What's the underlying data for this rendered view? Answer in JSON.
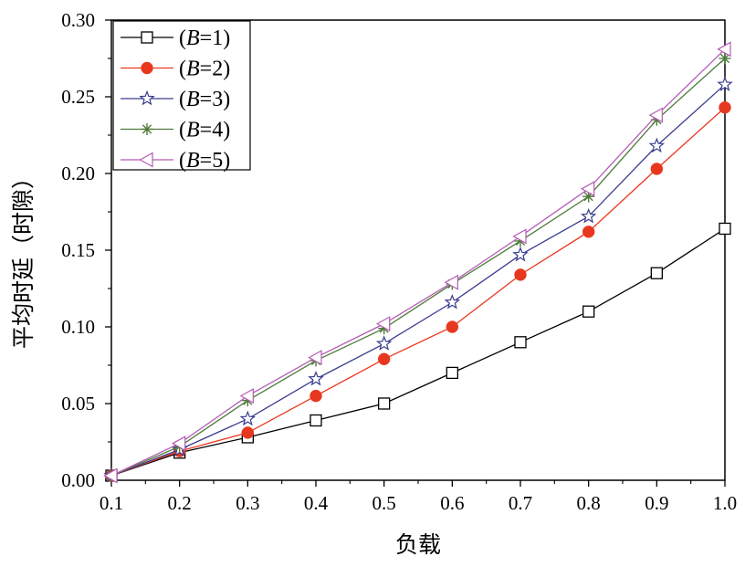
{
  "chart_data": {
    "type": "line",
    "xlabel": "负载",
    "ylabel": "平均时延（时隙）",
    "x": [
      0.1,
      0.2,
      0.3,
      0.4,
      0.5,
      0.6,
      0.7,
      0.8,
      0.9,
      1.0
    ],
    "x_tick_labels": [
      "0.1",
      "0.2",
      "0.3",
      "0.4",
      "0.5",
      "0.6",
      "0.7",
      "0.8",
      "0.9",
      "1.0"
    ],
    "y_tick_labels": [
      "0.00",
      "0.05",
      "0.10",
      "0.15",
      "0.20",
      "0.25",
      "0.30"
    ],
    "y_ticks": [
      0,
      0.05,
      0.1,
      0.15,
      0.2,
      0.25,
      0.3
    ],
    "xlim": [
      0.1,
      1.0
    ],
    "ylim": [
      0,
      0.3
    ],
    "grid": false,
    "legend_position": "top-left",
    "series": [
      {
        "name": "(B=1)",
        "name_prefix": "(",
        "name_var": "B",
        "name_suffix": "=1)",
        "color": "#000000",
        "marker": "square-open",
        "values": [
          0.003,
          0.018,
          0.028,
          0.039,
          0.05,
          0.07,
          0.09,
          0.11,
          0.135,
          0.164
        ]
      },
      {
        "name": "(B=2)",
        "name_prefix": "(",
        "name_var": "B",
        "name_suffix": "=2)",
        "color": "#e8371f",
        "marker": "circle-filled",
        "values": [
          0.003,
          0.019,
          0.031,
          0.055,
          0.079,
          0.1,
          0.134,
          0.162,
          0.203,
          0.243
        ]
      },
      {
        "name": "(B=3)",
        "name_prefix": "(",
        "name_var": "B",
        "name_suffix": "=3)",
        "color": "#3a3d8f",
        "marker": "star-open",
        "values": [
          0.003,
          0.02,
          0.04,
          0.066,
          0.089,
          0.116,
          0.147,
          0.172,
          0.218,
          0.258
        ]
      },
      {
        "name": "(B=4)",
        "name_prefix": "(",
        "name_var": "B",
        "name_suffix": "=4)",
        "color": "#4e7a3a",
        "marker": "asterisk",
        "values": [
          0.003,
          0.022,
          0.052,
          0.078,
          0.099,
          0.128,
          0.156,
          0.185,
          0.235,
          0.275
        ]
      },
      {
        "name": "(B=5)",
        "name_prefix": "(",
        "name_var": "B",
        "name_suffix": "=5)",
        "color": "#b55cb5",
        "marker": "triangle-left-open",
        "values": [
          0.003,
          0.024,
          0.055,
          0.08,
          0.102,
          0.129,
          0.159,
          0.19,
          0.238,
          0.281
        ]
      }
    ]
  }
}
